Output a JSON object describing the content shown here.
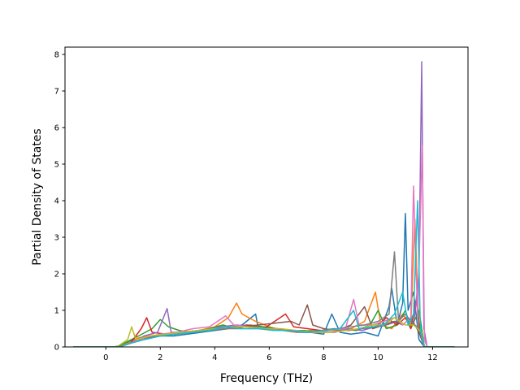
{
  "chart_data": {
    "type": "line",
    "title": "",
    "xlabel": "Frequency (THz)",
    "ylabel": "Partial Density of States",
    "xlim": [
      -1.5,
      13.3
    ],
    "ylim": [
      0,
      8.2
    ],
    "xticks": [
      0,
      2,
      4,
      6,
      8,
      10,
      12
    ],
    "yticks": [
      0,
      1,
      2,
      3,
      4,
      5,
      6,
      7,
      8
    ],
    "grid": false,
    "legend": "none",
    "curve_x_range": [
      -1.2,
      12.8
    ],
    "colors": [
      "#1f77b4",
      "#ff7f0e",
      "#2ca02c",
      "#d62728",
      "#9467bd",
      "#8c564b",
      "#e377c2",
      "#7f7f7f",
      "#bcbd22",
      "#17becf"
    ],
    "series": [
      {
        "color": "#1f77b4",
        "values": [
          [
            -1.2,
            0
          ],
          [
            0.3,
            0
          ],
          [
            0.6,
            0.05
          ],
          [
            1.0,
            0.2
          ],
          [
            1.5,
            0.25
          ],
          [
            2.0,
            0.3
          ],
          [
            2.5,
            0.3
          ],
          [
            3.0,
            0.35
          ],
          [
            3.5,
            0.4
          ],
          [
            4.0,
            0.45
          ],
          [
            4.5,
            0.5
          ],
          [
            5.0,
            0.6
          ],
          [
            5.5,
            0.9
          ],
          [
            5.6,
            0.5
          ],
          [
            6.0,
            0.5
          ],
          [
            6.5,
            0.45
          ],
          [
            7.0,
            0.4
          ],
          [
            7.5,
            0.4
          ],
          [
            8.0,
            0.35
          ],
          [
            8.3,
            0.9
          ],
          [
            8.6,
            0.4
          ],
          [
            9.0,
            0.35
          ],
          [
            9.5,
            0.4
          ],
          [
            10.0,
            0.3
          ],
          [
            10.4,
            1.1
          ],
          [
            10.5,
            1.6
          ],
          [
            10.7,
            0.6
          ],
          [
            10.9,
            1.2
          ],
          [
            11.0,
            3.65
          ],
          [
            11.1,
            1.0
          ],
          [
            11.3,
            1.5
          ],
          [
            11.5,
            0.2
          ],
          [
            11.7,
            0
          ],
          [
            12.8,
            0
          ]
        ]
      },
      {
        "color": "#ff7f0e",
        "values": [
          [
            -1.2,
            0
          ],
          [
            0.4,
            0
          ],
          [
            0.8,
            0.1
          ],
          [
            1.2,
            0.25
          ],
          [
            1.6,
            0.3
          ],
          [
            2.2,
            0.35
          ],
          [
            2.8,
            0.4
          ],
          [
            3.4,
            0.45
          ],
          [
            4.0,
            0.55
          ],
          [
            4.5,
            0.8
          ],
          [
            4.8,
            1.2
          ],
          [
            5.0,
            0.9
          ],
          [
            5.5,
            0.7
          ],
          [
            6.0,
            0.55
          ],
          [
            6.5,
            0.45
          ],
          [
            7.0,
            0.4
          ],
          [
            7.5,
            0.45
          ],
          [
            8.0,
            0.45
          ],
          [
            8.5,
            0.45
          ],
          [
            9.0,
            0.5
          ],
          [
            9.5,
            0.7
          ],
          [
            9.9,
            1.5
          ],
          [
            10.1,
            0.6
          ],
          [
            10.5,
            0.5
          ],
          [
            10.9,
            0.9
          ],
          [
            11.2,
            0.6
          ],
          [
            11.35,
            3.5
          ],
          [
            11.5,
            0.5
          ],
          [
            11.7,
            0
          ],
          [
            12.8,
            0
          ]
        ]
      },
      {
        "color": "#2ca02c",
        "values": [
          [
            -1.2,
            0
          ],
          [
            0.4,
            0
          ],
          [
            0.8,
            0.15
          ],
          [
            1.2,
            0.3
          ],
          [
            1.7,
            0.5
          ],
          [
            2.0,
            0.75
          ],
          [
            2.3,
            0.55
          ],
          [
            2.7,
            0.45
          ],
          [
            3.2,
            0.4
          ],
          [
            3.8,
            0.5
          ],
          [
            4.3,
            0.6
          ],
          [
            4.8,
            0.5
          ],
          [
            5.3,
            0.6
          ],
          [
            5.8,
            0.55
          ],
          [
            6.3,
            0.5
          ],
          [
            6.8,
            0.45
          ],
          [
            7.3,
            0.45
          ],
          [
            7.8,
            0.4
          ],
          [
            8.2,
            0.45
          ],
          [
            8.7,
            0.5
          ],
          [
            9.2,
            0.45
          ],
          [
            9.7,
            0.6
          ],
          [
            10.0,
            1.0
          ],
          [
            10.3,
            0.5
          ],
          [
            10.7,
            0.6
          ],
          [
            11.0,
            1.0
          ],
          [
            11.2,
            0.5
          ],
          [
            11.5,
            1.0
          ],
          [
            11.7,
            0
          ],
          [
            12.8,
            0
          ]
        ]
      },
      {
        "color": "#d62728",
        "values": [
          [
            -1.2,
            0
          ],
          [
            0.5,
            0
          ],
          [
            0.9,
            0.1
          ],
          [
            1.3,
            0.5
          ],
          [
            1.5,
            0.8
          ],
          [
            1.7,
            0.4
          ],
          [
            2.2,
            0.35
          ],
          [
            2.8,
            0.4
          ],
          [
            3.4,
            0.45
          ],
          [
            4.0,
            0.5
          ],
          [
            4.6,
            0.55
          ],
          [
            5.2,
            0.6
          ],
          [
            5.8,
            0.5
          ],
          [
            6.2,
            0.7
          ],
          [
            6.6,
            0.9
          ],
          [
            6.9,
            0.55
          ],
          [
            7.4,
            0.5
          ],
          [
            7.9,
            0.45
          ],
          [
            8.4,
            0.5
          ],
          [
            8.9,
            0.45
          ],
          [
            9.4,
            0.5
          ],
          [
            9.9,
            0.55
          ],
          [
            10.3,
            0.8
          ],
          [
            10.7,
            0.6
          ],
          [
            11.0,
            0.8
          ],
          [
            11.2,
            0.5
          ],
          [
            11.4,
            1.3
          ],
          [
            11.55,
            0.3
          ],
          [
            11.7,
            0
          ],
          [
            12.8,
            0
          ]
        ]
      },
      {
        "color": "#9467bd",
        "values": [
          [
            -1.2,
            0
          ],
          [
            0.5,
            0
          ],
          [
            0.9,
            0.1
          ],
          [
            1.4,
            0.3
          ],
          [
            1.9,
            0.4
          ],
          [
            2.25,
            1.05
          ],
          [
            2.4,
            0.4
          ],
          [
            3.0,
            0.4
          ],
          [
            3.6,
            0.45
          ],
          [
            4.2,
            0.55
          ],
          [
            4.8,
            0.6
          ],
          [
            5.4,
            0.55
          ],
          [
            6.0,
            0.5
          ],
          [
            6.6,
            0.45
          ],
          [
            7.2,
            0.4
          ],
          [
            7.8,
            0.4
          ],
          [
            8.4,
            0.4
          ],
          [
            8.9,
            0.5
          ],
          [
            9.4,
            0.45
          ],
          [
            9.9,
            0.55
          ],
          [
            10.3,
            0.6
          ],
          [
            10.7,
            0.7
          ],
          [
            11.0,
            0.9
          ],
          [
            11.3,
            0.6
          ],
          [
            11.5,
            2.0
          ],
          [
            11.6,
            7.8
          ],
          [
            11.68,
            0.5
          ],
          [
            11.8,
            0
          ],
          [
            12.8,
            0
          ]
        ]
      },
      {
        "color": "#8c564b",
        "values": [
          [
            -1.2,
            0
          ],
          [
            0.5,
            0
          ],
          [
            0.9,
            0.1
          ],
          [
            1.4,
            0.25
          ],
          [
            2.0,
            0.3
          ],
          [
            2.6,
            0.35
          ],
          [
            3.2,
            0.4
          ],
          [
            3.8,
            0.45
          ],
          [
            4.4,
            0.5
          ],
          [
            5.0,
            0.55
          ],
          [
            5.6,
            0.6
          ],
          [
            6.2,
            0.65
          ],
          [
            6.8,
            0.7
          ],
          [
            7.1,
            0.6
          ],
          [
            7.4,
            1.15
          ],
          [
            7.6,
            0.6
          ],
          [
            8.0,
            0.5
          ],
          [
            8.5,
            0.45
          ],
          [
            9.0,
            0.6
          ],
          [
            9.5,
            1.1
          ],
          [
            9.8,
            0.5
          ],
          [
            10.2,
            0.6
          ],
          [
            10.6,
            0.7
          ],
          [
            10.9,
            0.6
          ],
          [
            11.2,
            0.8
          ],
          [
            11.5,
            0.4
          ],
          [
            11.7,
            0
          ],
          [
            12.8,
            0
          ]
        ]
      },
      {
        "color": "#e377c2",
        "values": [
          [
            -1.2,
            0
          ],
          [
            0.5,
            0
          ],
          [
            0.9,
            0.1
          ],
          [
            1.4,
            0.25
          ],
          [
            2.0,
            0.35
          ],
          [
            2.6,
            0.4
          ],
          [
            3.2,
            0.5
          ],
          [
            3.8,
            0.55
          ],
          [
            4.4,
            0.85
          ],
          [
            4.7,
            0.6
          ],
          [
            5.2,
            0.55
          ],
          [
            5.8,
            0.5
          ],
          [
            6.4,
            0.45
          ],
          [
            7.0,
            0.45
          ],
          [
            7.6,
            0.4
          ],
          [
            8.2,
            0.45
          ],
          [
            8.8,
            0.5
          ],
          [
            9.1,
            1.3
          ],
          [
            9.3,
            0.6
          ],
          [
            9.8,
            0.6
          ],
          [
            10.2,
            0.7
          ],
          [
            10.6,
            0.8
          ],
          [
            10.9,
            0.6
          ],
          [
            11.2,
            0.8
          ],
          [
            11.3,
            4.4
          ],
          [
            11.45,
            0.8
          ],
          [
            11.62,
            5.5
          ],
          [
            11.7,
            0.2
          ],
          [
            11.8,
            0
          ],
          [
            12.8,
            0
          ]
        ]
      },
      {
        "color": "#7f7f7f",
        "values": [
          [
            -1.2,
            0
          ],
          [
            0.5,
            0
          ],
          [
            0.9,
            0.1
          ],
          [
            1.4,
            0.2
          ],
          [
            2.0,
            0.3
          ],
          [
            2.6,
            0.35
          ],
          [
            3.2,
            0.4
          ],
          [
            3.8,
            0.45
          ],
          [
            4.4,
            0.5
          ],
          [
            5.0,
            0.5
          ],
          [
            5.6,
            0.5
          ],
          [
            6.2,
            0.45
          ],
          [
            6.8,
            0.45
          ],
          [
            7.4,
            0.4
          ],
          [
            8.0,
            0.45
          ],
          [
            8.5,
            0.5
          ],
          [
            9.0,
            0.55
          ],
          [
            9.5,
            0.6
          ],
          [
            10.0,
            0.7
          ],
          [
            10.4,
            0.9
          ],
          [
            10.6,
            2.6
          ],
          [
            10.75,
            0.7
          ],
          [
            11.0,
            0.9
          ],
          [
            11.2,
            0.7
          ],
          [
            11.5,
            0.5
          ],
          [
            11.7,
            0
          ],
          [
            12.8,
            0
          ]
        ]
      },
      {
        "color": "#bcbd22",
        "values": [
          [
            -1.2,
            0
          ],
          [
            0.4,
            0
          ],
          [
            0.8,
            0.2
          ],
          [
            0.95,
            0.55
          ],
          [
            1.1,
            0.2
          ],
          [
            1.6,
            0.3
          ],
          [
            2.2,
            0.35
          ],
          [
            2.8,
            0.4
          ],
          [
            3.4,
            0.45
          ],
          [
            4.0,
            0.5
          ],
          [
            4.6,
            0.55
          ],
          [
            5.2,
            0.55
          ],
          [
            5.8,
            0.5
          ],
          [
            6.4,
            0.5
          ],
          [
            7.0,
            0.45
          ],
          [
            7.6,
            0.4
          ],
          [
            8.2,
            0.4
          ],
          [
            8.8,
            0.45
          ],
          [
            9.3,
            0.5
          ],
          [
            9.8,
            0.6
          ],
          [
            10.2,
            0.6
          ],
          [
            10.6,
            0.8
          ],
          [
            11.0,
            0.6
          ],
          [
            11.3,
            0.6
          ],
          [
            11.6,
            0.4
          ],
          [
            11.7,
            0
          ],
          [
            12.8,
            0
          ]
        ]
      },
      {
        "color": "#17becf",
        "values": [
          [
            -1.2,
            0
          ],
          [
            0.5,
            0
          ],
          [
            0.9,
            0.1
          ],
          [
            1.4,
            0.2
          ],
          [
            2.0,
            0.3
          ],
          [
            2.6,
            0.35
          ],
          [
            3.2,
            0.4
          ],
          [
            3.8,
            0.45
          ],
          [
            4.4,
            0.55
          ],
          [
            5.0,
            0.5
          ],
          [
            5.6,
            0.5
          ],
          [
            6.2,
            0.45
          ],
          [
            6.8,
            0.45
          ],
          [
            7.4,
            0.4
          ],
          [
            8.0,
            0.45
          ],
          [
            8.6,
            0.5
          ],
          [
            9.1,
            1.0
          ],
          [
            9.3,
            0.5
          ],
          [
            9.8,
            0.55
          ],
          [
            10.2,
            0.6
          ],
          [
            10.6,
            0.9
          ],
          [
            10.9,
            1.5
          ],
          [
            11.1,
            0.6
          ],
          [
            11.3,
            0.9
          ],
          [
            11.45,
            4.0
          ],
          [
            11.55,
            0.5
          ],
          [
            11.7,
            0
          ],
          [
            12.8,
            0
          ]
        ]
      }
    ]
  }
}
